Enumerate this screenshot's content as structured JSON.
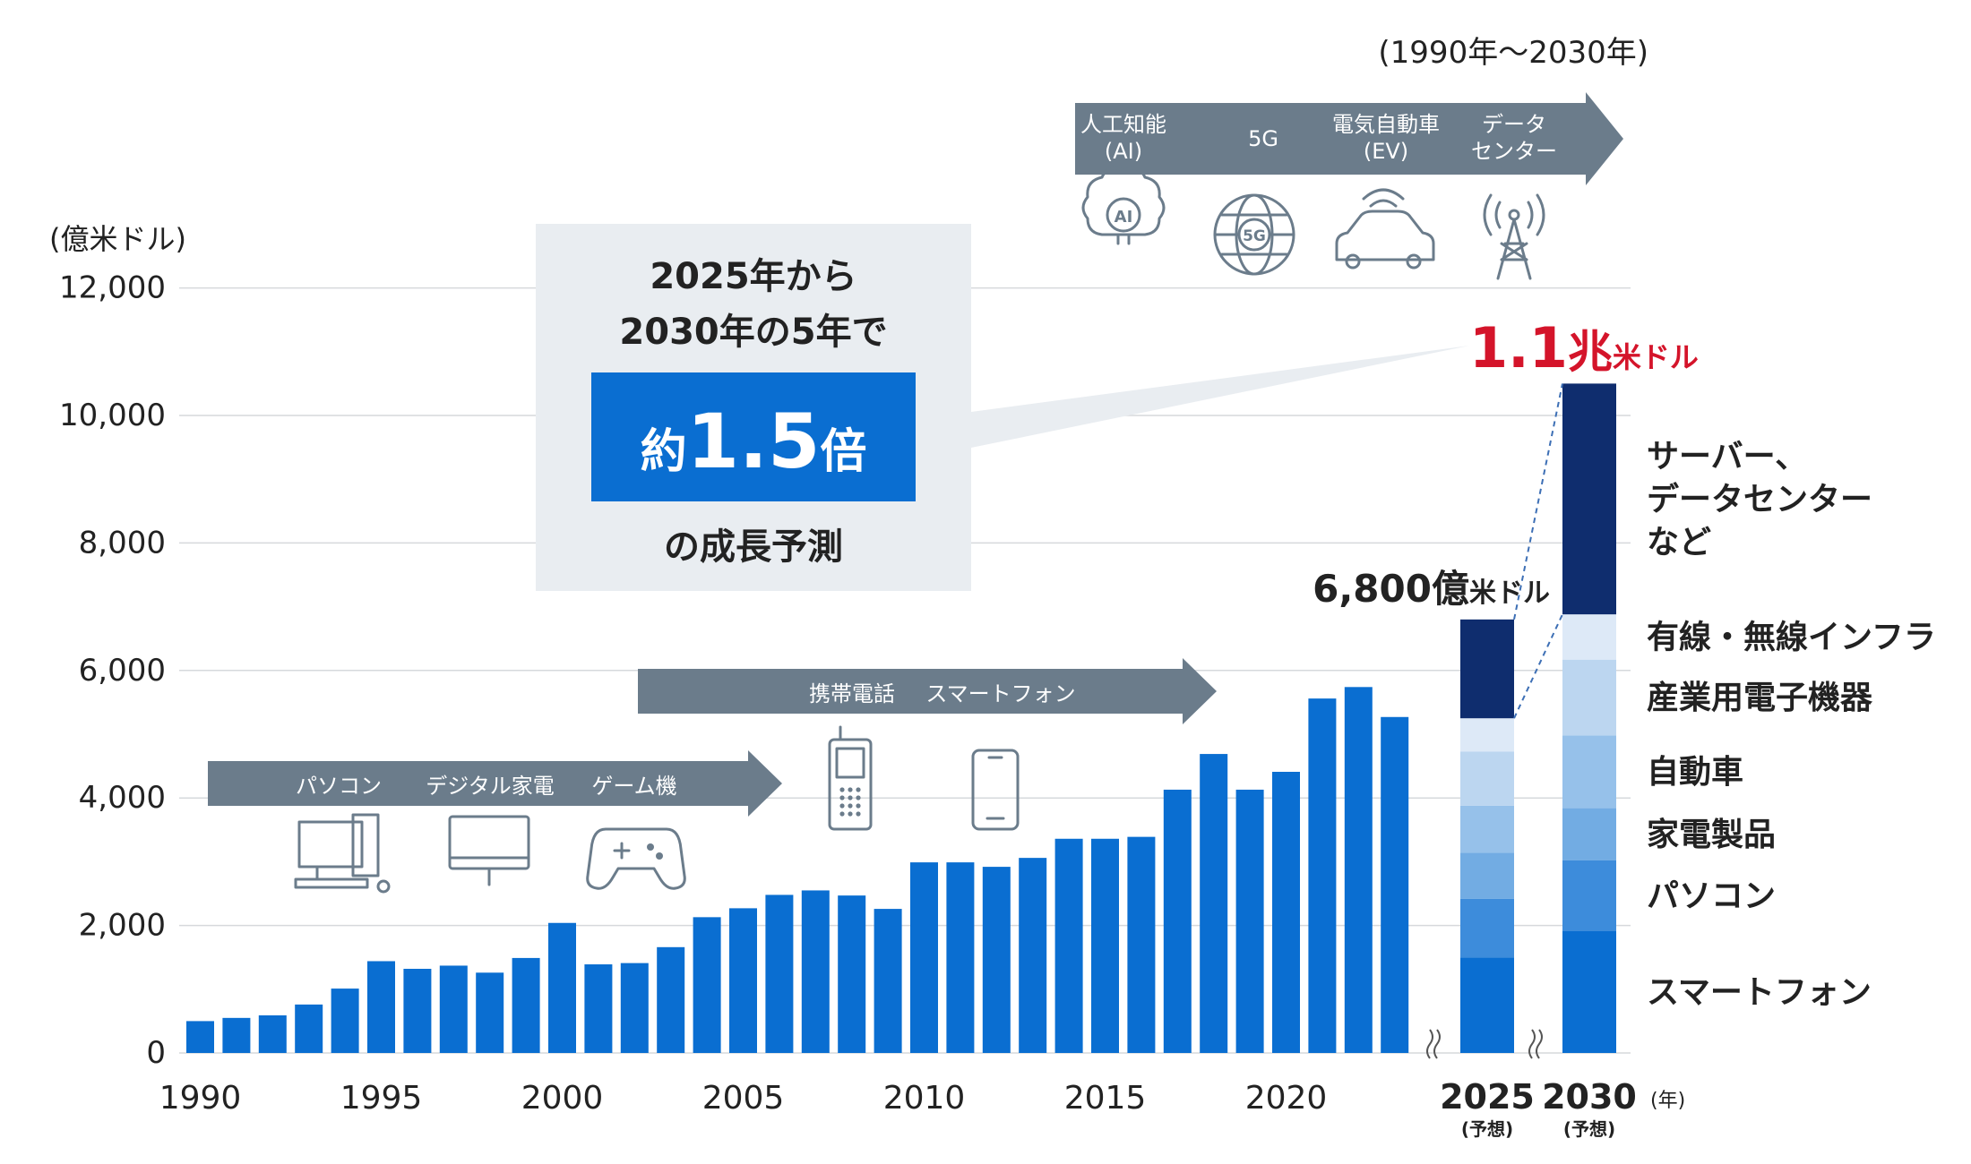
{
  "period_note": "(1990年〜2030年)",
  "unit_label": "(億米ドル)",
  "year_unit": "(年)",
  "forecast_label": "(予想)",
  "colors": {
    "bar": "#0a6ed1",
    "arrow": "#6b7c8b",
    "callout": "#e9edf1",
    "highlight": "#0a6ed1",
    "seg_server": "#0f2d6e",
    "seg_infra": "#dde9f7",
    "seg_industrial": "#bcd6f0",
    "seg_auto": "#96c1ea",
    "seg_appliance": "#72ace3",
    "seg_pc": "#3d8cdb",
    "seg_smartphone": "#0a6ed1",
    "total_2030": "#d4142a",
    "grid": "#d6d9dc",
    "text": "#222222",
    "icon": "#6b7c8b"
  },
  "callout": {
    "line1": "2025年から",
    "line2": "2030年の5年で",
    "highlight_prefix": "約",
    "highlight_value": "1.5",
    "highlight_suffix": "倍",
    "line4": "の成長予測"
  },
  "eras": [
    {
      "items": [
        "パソコン",
        "デジタル家電",
        "ゲーム機"
      ],
      "icons": [
        "desktop-pc-icon",
        "monitor-icon",
        "gamepad-icon"
      ]
    },
    {
      "items": [
        "携帯電話",
        "スマートフォン"
      ],
      "icons": [
        "feature-phone-icon",
        "smartphone-icon"
      ]
    },
    {
      "items": [
        "人工知能\n(AI)",
        "5G",
        "電気自動車\n(EV)",
        "データ\nセンター"
      ],
      "icons": [
        "ai-brain-icon",
        "5g-globe-icon",
        "ev-car-icon",
        "antenna-tower-icon"
      ]
    }
  ],
  "totals": {
    "t2025_num": "6,800",
    "t2025_unit1": "億",
    "t2025_unit2": "米ドル",
    "t2030_num": "1.1",
    "t2030_unit1": "兆",
    "t2030_unit2": "米ドル"
  },
  "chart_data": {
    "type": "bar",
    "ylabel": "(億米ドル)",
    "ylim": [
      0,
      12000
    ],
    "y_ticks": [
      0,
      2000,
      4000,
      6000,
      8000,
      10000,
      12000
    ],
    "y_tick_labels": [
      "0",
      "2,000",
      "4,000",
      "6,000",
      "8,000",
      "10,000",
      "12,000"
    ],
    "x_tick_labels": [
      "1990",
      "1995",
      "2000",
      "2005",
      "2010",
      "2015",
      "2020"
    ],
    "grid": true,
    "history": {
      "years": [
        1990,
        1991,
        1992,
        1993,
        1994,
        1995,
        1996,
        1997,
        1998,
        1999,
        2000,
        2001,
        2002,
        2003,
        2004,
        2005,
        2006,
        2007,
        2008,
        2009,
        2010,
        2011,
        2012,
        2013,
        2014,
        2015,
        2016,
        2017,
        2018,
        2019,
        2020,
        2021,
        2022,
        2023
      ],
      "values": [
        500,
        550,
        590,
        760,
        1010,
        1440,
        1320,
        1370,
        1260,
        1490,
        2040,
        1390,
        1410,
        1660,
        2130,
        2270,
        2480,
        2550,
        2470,
        2260,
        2990,
        2990,
        2920,
        3060,
        3360,
        3360,
        3390,
        4130,
        4690,
        4130,
        4410,
        5560,
        5740,
        5270
      ]
    },
    "forecast": [
      {
        "label": "2025",
        "total": 6800,
        "segments": [
          {
            "name": "スマートフォン",
            "value": 1500
          },
          {
            "name": "パソコン",
            "value": 920
          },
          {
            "name": "家電製品",
            "value": 720
          },
          {
            "name": "自動車",
            "value": 740
          },
          {
            "name": "産業用電子機器",
            "value": 850
          },
          {
            "name": "有線・無線インフラ",
            "value": 520
          },
          {
            "name": "サーバー、\nデータセンター\nなど",
            "value": 1550
          }
        ]
      },
      {
        "label": "2030",
        "total": 10500,
        "segments": [
          {
            "name": "スマートフォン",
            "value": 1910
          },
          {
            "name": "パソコン",
            "value": 1110
          },
          {
            "name": "家電製品",
            "value": 820
          },
          {
            "name": "自動車",
            "value": 1140
          },
          {
            "name": "産業用電子機器",
            "value": 1190
          },
          {
            "name": "有線・無線インフラ",
            "value": 710
          },
          {
            "name": "サーバー、\nデータセンター\nなど",
            "value": 3620
          }
        ]
      }
    ]
  }
}
